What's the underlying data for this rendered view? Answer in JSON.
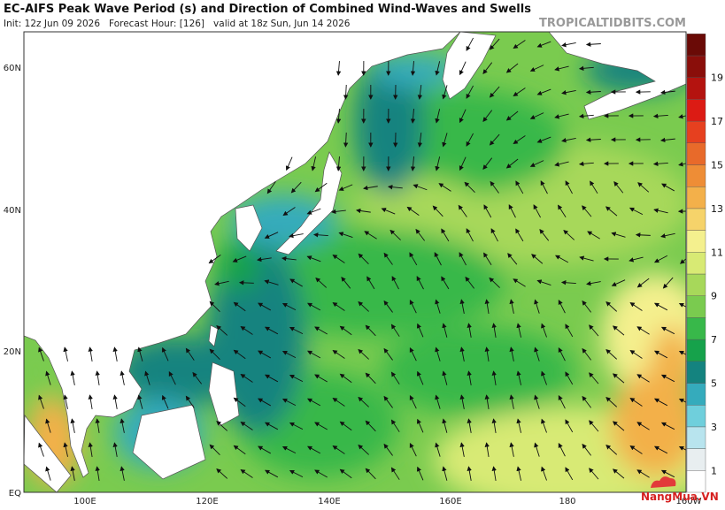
{
  "header": {
    "title": "EC-AIFS Peak Wave Period (s) and Direction of Combined Wind-Waves and Swells",
    "subtitle": "Init: 12z Jun 09 2026   Forecast Hour: [126]   valid at 18z Sun, Jun 14 2026",
    "source": "TROPICALTIDBITS.COM"
  },
  "axes": {
    "lat_labels": [
      "60N",
      "40N",
      "20N",
      "EQ"
    ],
    "lon_labels": [
      "100E",
      "120E",
      "140E",
      "160E",
      "180",
      "160W"
    ]
  },
  "colorbar": {
    "labels": [
      "1",
      "3",
      "5",
      "7",
      "9",
      "11",
      "13",
      "15",
      "17",
      "19"
    ],
    "colors": [
      "#ffffff",
      "#e8eef0",
      "#b8e4ee",
      "#6fcfdc",
      "#35abbc",
      "#14837f",
      "#16a24b",
      "#38b84a",
      "#7acb4f",
      "#a7d85a",
      "#d8ea74",
      "#f4f08e",
      "#f6d36a",
      "#f3b04a",
      "#ee8d36",
      "#e86a2a",
      "#e6401f",
      "#dc1b14",
      "#b4130f",
      "#8a0e0a",
      "#6a0a06"
    ]
  },
  "watermark": "NangMua.VN"
}
